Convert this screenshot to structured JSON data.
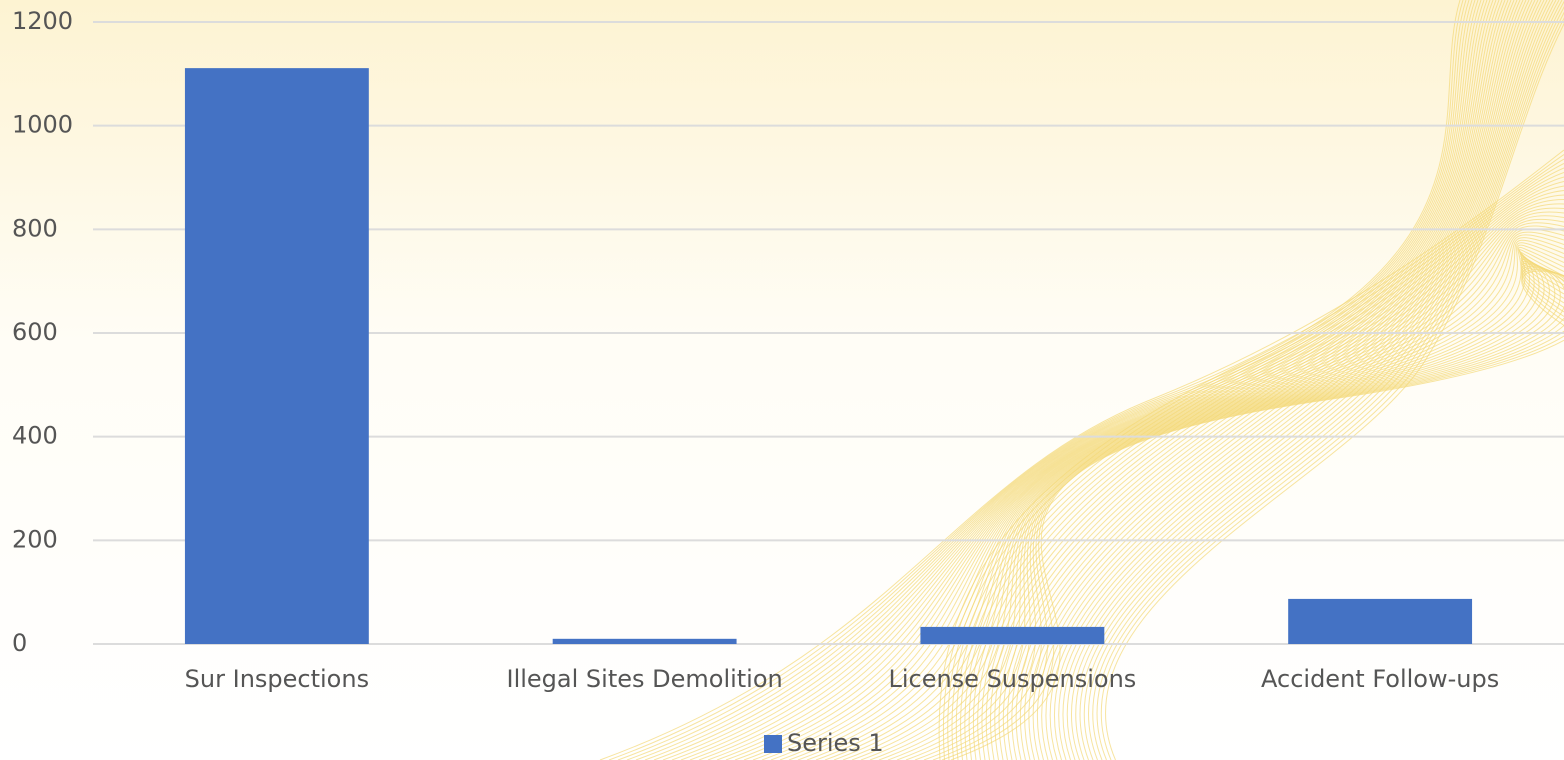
{
  "chart_data": {
    "type": "bar",
    "categories": [
      "Sur Inspections",
      "Illegal Sites Demolition",
      "License Suspensions",
      "Accident Follow-ups"
    ],
    "series": [
      {
        "name": "Series 1",
        "color": "#4472c4",
        "values": [
          1111,
          10,
          33,
          87
        ]
      }
    ],
    "ylim": [
      0,
      1200
    ],
    "yticks": [
      0,
      200,
      400,
      600,
      800,
      1000,
      1200
    ],
    "grid": true,
    "legend": "bottom"
  }
}
